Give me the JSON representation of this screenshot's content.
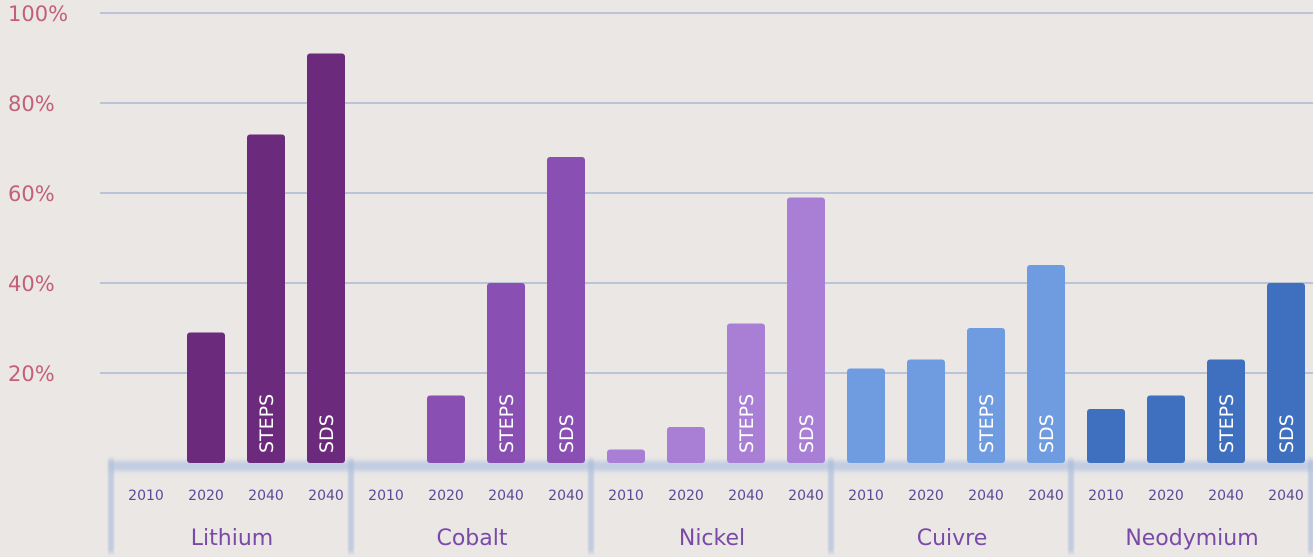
{
  "chart_data": {
    "type": "bar",
    "ylim": [
      0,
      100
    ],
    "y_ticks": [
      20,
      40,
      60,
      80,
      100
    ],
    "y_tick_labels": [
      "20%",
      "40%",
      "60%",
      "80%",
      "100%"
    ],
    "grid": true,
    "groups": [
      {
        "name": "Lithium",
        "color": "#6b2a7b",
        "bars": [
          {
            "year": "2010",
            "label": "",
            "value": 0
          },
          {
            "year": "2020",
            "label": "",
            "value": 29
          },
          {
            "year": "2040",
            "label": "STEPS",
            "value": 73
          },
          {
            "year": "2040",
            "label": "SDS",
            "value": 91
          }
        ]
      },
      {
        "name": "Cobalt",
        "color": "#8a4fb3",
        "bars": [
          {
            "year": "2010",
            "label": "",
            "value": 0
          },
          {
            "year": "2020",
            "label": "",
            "value": 15
          },
          {
            "year": "2040",
            "label": "STEPS",
            "value": 40
          },
          {
            "year": "2040",
            "label": "SDS",
            "value": 68
          }
        ]
      },
      {
        "name": "Nickel",
        "color": "#a97fd6",
        "bars": [
          {
            "year": "2010",
            "label": "",
            "value": 3
          },
          {
            "year": "2020",
            "label": "",
            "value": 8
          },
          {
            "year": "2040",
            "label": "STEPS",
            "value": 31
          },
          {
            "year": "2040",
            "label": "SDS",
            "value": 59
          }
        ]
      },
      {
        "name": "Cuivre",
        "color": "#6f9ce0",
        "bars": [
          {
            "year": "2010",
            "label": "",
            "value": 21
          },
          {
            "year": "2020",
            "label": "",
            "value": 23
          },
          {
            "year": "2040",
            "label": "STEPS",
            "value": 30
          },
          {
            "year": "2040",
            "label": "SDS",
            "value": 44
          }
        ]
      },
      {
        "name": "Neodymium",
        "color": "#3f6fbf",
        "bars": [
          {
            "year": "2010",
            "label": "",
            "value": 12
          },
          {
            "year": "2020",
            "label": "",
            "value": 15
          },
          {
            "year": "2040",
            "label": "STEPS",
            "value": 23
          },
          {
            "year": "2040",
            "label": "SDS",
            "value": 40
          }
        ]
      }
    ]
  }
}
